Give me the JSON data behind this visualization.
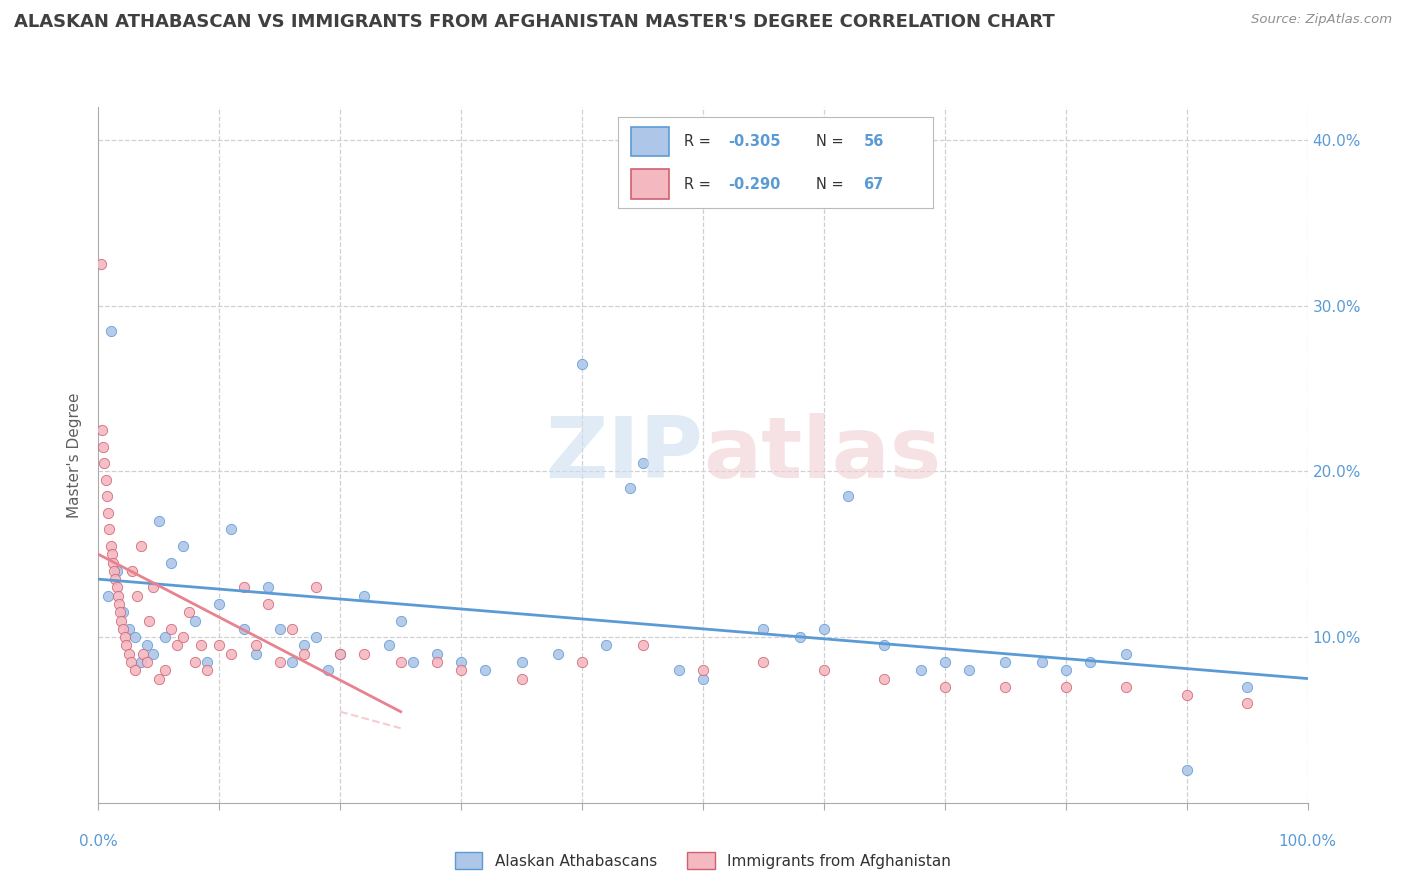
{
  "title": "ALASKAN ATHABASCAN VS IMMIGRANTS FROM AFGHANISTAN MASTER'S DEGREE CORRELATION CHART",
  "source": "Source: ZipAtlas.com",
  "ylabel": "Master's Degree",
  "legend_labels": [
    "Alaskan Athabascans",
    "Immigrants from Afghanistan"
  ],
  "blue_scatter": [
    [
      0.8,
      12.5
    ],
    [
      1.0,
      28.5
    ],
    [
      1.5,
      14.0
    ],
    [
      2.0,
      11.5
    ],
    [
      2.5,
      10.5
    ],
    [
      3.0,
      10.0
    ],
    [
      3.5,
      8.5
    ],
    [
      4.0,
      9.5
    ],
    [
      4.5,
      9.0
    ],
    [
      5.0,
      17.0
    ],
    [
      5.5,
      10.0
    ],
    [
      6.0,
      14.5
    ],
    [
      7.0,
      15.5
    ],
    [
      8.0,
      11.0
    ],
    [
      9.0,
      8.5
    ],
    [
      10.0,
      12.0
    ],
    [
      11.0,
      16.5
    ],
    [
      12.0,
      10.5
    ],
    [
      13.0,
      9.0
    ],
    [
      14.0,
      13.0
    ],
    [
      15.0,
      10.5
    ],
    [
      16.0,
      8.5
    ],
    [
      17.0,
      9.5
    ],
    [
      18.0,
      10.0
    ],
    [
      19.0,
      8.0
    ],
    [
      20.0,
      9.0
    ],
    [
      22.0,
      12.5
    ],
    [
      24.0,
      9.5
    ],
    [
      25.0,
      11.0
    ],
    [
      26.0,
      8.5
    ],
    [
      28.0,
      9.0
    ],
    [
      30.0,
      8.5
    ],
    [
      32.0,
      8.0
    ],
    [
      35.0,
      8.5
    ],
    [
      38.0,
      9.0
    ],
    [
      40.0,
      26.5
    ],
    [
      42.0,
      9.5
    ],
    [
      44.0,
      19.0
    ],
    [
      45.0,
      20.5
    ],
    [
      48.0,
      8.0
    ],
    [
      50.0,
      7.5
    ],
    [
      55.0,
      10.5
    ],
    [
      58.0,
      10.0
    ],
    [
      60.0,
      10.5
    ],
    [
      62.0,
      18.5
    ],
    [
      65.0,
      9.5
    ],
    [
      68.0,
      8.0
    ],
    [
      70.0,
      8.5
    ],
    [
      72.0,
      8.0
    ],
    [
      75.0,
      8.5
    ],
    [
      78.0,
      8.5
    ],
    [
      80.0,
      8.0
    ],
    [
      82.0,
      8.5
    ],
    [
      85.0,
      9.0
    ],
    [
      90.0,
      2.0
    ],
    [
      95.0,
      7.0
    ]
  ],
  "pink_scatter": [
    [
      0.2,
      32.5
    ],
    [
      0.3,
      22.5
    ],
    [
      0.4,
      21.5
    ],
    [
      0.5,
      20.5
    ],
    [
      0.6,
      19.5
    ],
    [
      0.7,
      18.5
    ],
    [
      0.8,
      17.5
    ],
    [
      0.9,
      16.5
    ],
    [
      1.0,
      15.5
    ],
    [
      1.1,
      15.0
    ],
    [
      1.2,
      14.5
    ],
    [
      1.3,
      14.0
    ],
    [
      1.4,
      13.5
    ],
    [
      1.5,
      13.0
    ],
    [
      1.6,
      12.5
    ],
    [
      1.7,
      12.0
    ],
    [
      1.8,
      11.5
    ],
    [
      1.9,
      11.0
    ],
    [
      2.0,
      10.5
    ],
    [
      2.2,
      10.0
    ],
    [
      2.3,
      9.5
    ],
    [
      2.5,
      9.0
    ],
    [
      2.7,
      8.5
    ],
    [
      2.8,
      14.0
    ],
    [
      3.0,
      8.0
    ],
    [
      3.2,
      12.5
    ],
    [
      3.5,
      15.5
    ],
    [
      3.7,
      9.0
    ],
    [
      4.0,
      8.5
    ],
    [
      4.2,
      11.0
    ],
    [
      4.5,
      13.0
    ],
    [
      5.0,
      7.5
    ],
    [
      5.5,
      8.0
    ],
    [
      6.0,
      10.5
    ],
    [
      6.5,
      9.5
    ],
    [
      7.0,
      10.0
    ],
    [
      7.5,
      11.5
    ],
    [
      8.0,
      8.5
    ],
    [
      8.5,
      9.5
    ],
    [
      9.0,
      8.0
    ],
    [
      10.0,
      9.5
    ],
    [
      11.0,
      9.0
    ],
    [
      12.0,
      13.0
    ],
    [
      13.0,
      9.5
    ],
    [
      14.0,
      12.0
    ],
    [
      15.0,
      8.5
    ],
    [
      16.0,
      10.5
    ],
    [
      17.0,
      9.0
    ],
    [
      18.0,
      13.0
    ],
    [
      20.0,
      9.0
    ],
    [
      22.0,
      9.0
    ],
    [
      25.0,
      8.5
    ],
    [
      28.0,
      8.5
    ],
    [
      30.0,
      8.0
    ],
    [
      35.0,
      7.5
    ],
    [
      40.0,
      8.5
    ],
    [
      45.0,
      9.5
    ],
    [
      50.0,
      8.0
    ],
    [
      55.0,
      8.5
    ],
    [
      60.0,
      8.0
    ],
    [
      65.0,
      7.5
    ],
    [
      70.0,
      7.0
    ],
    [
      75.0,
      7.0
    ],
    [
      80.0,
      7.0
    ],
    [
      85.0,
      7.0
    ],
    [
      90.0,
      6.5
    ],
    [
      95.0,
      6.0
    ]
  ],
  "blue_line_x": [
    0,
    100
  ],
  "blue_line_y": [
    13.5,
    7.5
  ],
  "pink_line_x": [
    0,
    25
  ],
  "pink_line_y": [
    15.0,
    5.5
  ],
  "xlim": [
    0,
    100
  ],
  "ylim": [
    0,
    42
  ],
  "background_color": "#ffffff",
  "scatter_color_blue": "#aec6e8",
  "scatter_color_pink": "#f4b8c1",
  "line_color_blue": "#5b9bd5",
  "line_color_pink": "#e8828e",
  "grid_color": "#d0d0d0",
  "title_color": "#404040",
  "source_color": "#909090",
  "axis_color": "#5b9bd5",
  "legend_r_blue": "-0.305",
  "legend_n_blue": "56",
  "legend_r_pink": "-0.290",
  "legend_n_pink": "67"
}
